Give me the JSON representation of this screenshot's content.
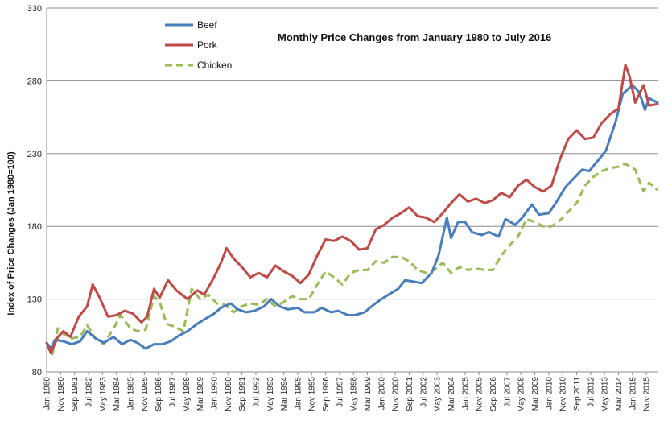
{
  "chart_data": {
    "type": "line",
    "title": "Monthly Price Changes from January 1980  to July 2016",
    "ylabel": "Index of Price Changes (Jan 1980=100)",
    "xlabel": "",
    "ylim": [
      80,
      330
    ],
    "yticks": [
      80,
      130,
      180,
      230,
      280,
      330
    ],
    "x_start": "1980-01",
    "x_end": "2016-07",
    "x_tick_labels": [
      "Jan 1980",
      "Nov 1980",
      "Sep 1981",
      "Jul 1982",
      "May 1983",
      "Mar 1984",
      "Jan 1985",
      "Nov 1985",
      "Sep 1986",
      "Jul 1987",
      "May 1988",
      "Mar 1989",
      "Jan 1990",
      "Nov 1990",
      "Sep 1991",
      "Jul 1992",
      "May 1993",
      "Mar 1994",
      "Jan 1995",
      "Nov 1995",
      "Sep 1996",
      "Jul 1997",
      "May 1998",
      "Mar 1999",
      "Jan 2000",
      "Nov 2000",
      "Sep 2001",
      "Jul 2002",
      "May 2003",
      "Mar 2004",
      "Jan 2005",
      "Nov 2005",
      "Sep 2006",
      "Jul 2007",
      "May 2008",
      "Mar 2009",
      "Jan 2010",
      "Nov 2010",
      "Sep 2011",
      "Jul 2012",
      "May 2013",
      "Mar 2014",
      "Jan 2015",
      "Nov 2015"
    ],
    "grid": true,
    "legend_position": "top-left",
    "series": [
      {
        "name": "Beef",
        "color": "#4a7ebb",
        "dash": "solid",
        "points": [
          [
            "1980-01",
            100
          ],
          [
            "1980-04",
            96
          ],
          [
            "1980-07",
            102
          ],
          [
            "1981-01",
            101
          ],
          [
            "1981-07",
            99
          ],
          [
            "1982-01",
            101
          ],
          [
            "1982-06",
            108
          ],
          [
            "1982-12",
            103
          ],
          [
            "1983-06",
            100
          ],
          [
            "1984-01",
            104
          ],
          [
            "1984-07",
            99
          ],
          [
            "1985-01",
            102
          ],
          [
            "1985-06",
            100
          ],
          [
            "1985-12",
            96
          ],
          [
            "1986-06",
            99
          ],
          [
            "1986-12",
            99
          ],
          [
            "1987-06",
            101
          ],
          [
            "1987-12",
            105
          ],
          [
            "1988-06",
            108
          ],
          [
            "1989-01",
            113
          ],
          [
            "1989-06",
            116
          ],
          [
            "1990-01",
            120
          ],
          [
            "1990-06",
            124
          ],
          [
            "1991-01",
            127
          ],
          [
            "1991-06",
            123
          ],
          [
            "1991-12",
            121
          ],
          [
            "1992-06",
            122
          ],
          [
            "1993-01",
            125
          ],
          [
            "1993-06",
            130
          ],
          [
            "1993-12",
            125
          ],
          [
            "1994-06",
            123
          ],
          [
            "1995-01",
            124
          ],
          [
            "1995-06",
            121
          ],
          [
            "1996-01",
            121
          ],
          [
            "1996-06",
            124
          ],
          [
            "1997-01",
            121
          ],
          [
            "1997-06",
            122
          ],
          [
            "1998-01",
            119
          ],
          [
            "1998-06",
            119
          ],
          [
            "1999-01",
            121
          ],
          [
            "1999-06",
            125
          ],
          [
            "2000-01",
            130
          ],
          [
            "2000-06",
            133
          ],
          [
            "2001-01",
            137
          ],
          [
            "2001-06",
            143
          ],
          [
            "2001-12",
            142
          ],
          [
            "2002-06",
            141
          ],
          [
            "2003-01",
            148
          ],
          [
            "2003-06",
            160
          ],
          [
            "2003-12",
            186
          ],
          [
            "2004-03",
            172
          ],
          [
            "2004-08",
            183
          ],
          [
            "2005-01",
            183
          ],
          [
            "2005-06",
            176
          ],
          [
            "2006-01",
            174
          ],
          [
            "2006-06",
            176
          ],
          [
            "2007-01",
            173
          ],
          [
            "2007-06",
            185
          ],
          [
            "2008-01",
            181
          ],
          [
            "2008-06",
            186
          ],
          [
            "2009-01",
            195
          ],
          [
            "2009-06",
            188
          ],
          [
            "2010-01",
            189
          ],
          [
            "2010-06",
            196
          ],
          [
            "2011-01",
            207
          ],
          [
            "2011-06",
            212
          ],
          [
            "2012-01",
            219
          ],
          [
            "2012-06",
            218
          ],
          [
            "2013-01",
            226
          ],
          [
            "2013-06",
            232
          ],
          [
            "2014-01",
            252
          ],
          [
            "2014-06",
            271
          ],
          [
            "2015-01",
            277
          ],
          [
            "2015-06",
            272
          ],
          [
            "2015-10",
            260
          ],
          [
            "2016-01",
            268
          ],
          [
            "2016-07",
            265
          ]
        ]
      },
      {
        "name": "Pork",
        "color": "#be4b48",
        "dash": "solid",
        "points": [
          [
            "1980-01",
            100
          ],
          [
            "1980-04",
            93
          ],
          [
            "1980-09",
            104
          ],
          [
            "1981-01",
            108
          ],
          [
            "1981-06",
            104
          ],
          [
            "1981-12",
            118
          ],
          [
            "1982-06",
            125
          ],
          [
            "1982-10",
            140
          ],
          [
            "1983-03",
            131
          ],
          [
            "1983-09",
            118
          ],
          [
            "1984-03",
            119
          ],
          [
            "1984-09",
            122
          ],
          [
            "1985-03",
            120
          ],
          [
            "1985-09",
            114
          ],
          [
            "1986-01",
            118
          ],
          [
            "1986-06",
            137
          ],
          [
            "1986-10",
            131
          ],
          [
            "1987-04",
            143
          ],
          [
            "1987-10",
            136
          ],
          [
            "1988-06",
            130
          ],
          [
            "1989-01",
            136
          ],
          [
            "1989-06",
            133
          ],
          [
            "1990-01",
            145
          ],
          [
            "1990-06",
            155
          ],
          [
            "1990-10",
            165
          ],
          [
            "1991-03",
            158
          ],
          [
            "1991-09",
            152
          ],
          [
            "1992-03",
            145
          ],
          [
            "1992-09",
            148
          ],
          [
            "1993-03",
            145
          ],
          [
            "1993-09",
            153
          ],
          [
            "1994-03",
            149
          ],
          [
            "1994-09",
            146
          ],
          [
            "1995-03",
            141
          ],
          [
            "1995-09",
            147
          ],
          [
            "1996-03",
            160
          ],
          [
            "1996-09",
            171
          ],
          [
            "1997-03",
            170
          ],
          [
            "1997-09",
            173
          ],
          [
            "1998-03",
            170
          ],
          [
            "1998-09",
            164
          ],
          [
            "1999-03",
            165
          ],
          [
            "1999-09",
            178
          ],
          [
            "2000-03",
            181
          ],
          [
            "2000-09",
            186
          ],
          [
            "2001-03",
            189
          ],
          [
            "2001-09",
            193
          ],
          [
            "2002-03",
            187
          ],
          [
            "2002-09",
            186
          ],
          [
            "2003-03",
            183
          ],
          [
            "2003-09",
            189
          ],
          [
            "2004-03",
            196
          ],
          [
            "2004-09",
            202
          ],
          [
            "2005-03",
            197
          ],
          [
            "2005-09",
            199
          ],
          [
            "2006-03",
            196
          ],
          [
            "2006-09",
            198
          ],
          [
            "2007-03",
            203
          ],
          [
            "2007-09",
            200
          ],
          [
            "2008-03",
            208
          ],
          [
            "2008-09",
            212
          ],
          [
            "2009-03",
            207
          ],
          [
            "2009-09",
            204
          ],
          [
            "2010-03",
            208
          ],
          [
            "2010-09",
            226
          ],
          [
            "2011-03",
            240
          ],
          [
            "2011-09",
            246
          ],
          [
            "2012-03",
            240
          ],
          [
            "2012-09",
            241
          ],
          [
            "2013-03",
            251
          ],
          [
            "2013-09",
            257
          ],
          [
            "2014-03",
            261
          ],
          [
            "2014-08",
            291
          ],
          [
            "2014-11",
            283
          ],
          [
            "2015-03",
            265
          ],
          [
            "2015-09",
            277
          ],
          [
            "2016-01",
            263
          ],
          [
            "2016-07",
            264
          ]
        ]
      },
      {
        "name": "Chicken",
        "color": "#9bbb59",
        "dash": "dashed",
        "points": [
          [
            "1980-01",
            100
          ],
          [
            "1980-05",
            92
          ],
          [
            "1980-09",
            110
          ],
          [
            "1981-01",
            106
          ],
          [
            "1981-07",
            103
          ],
          [
            "1982-01",
            104
          ],
          [
            "1982-06",
            112
          ],
          [
            "1982-12",
            103
          ],
          [
            "1983-06",
            99
          ],
          [
            "1984-01",
            110
          ],
          [
            "1984-06",
            119
          ],
          [
            "1985-01",
            110
          ],
          [
            "1985-06",
            108
          ],
          [
            "1985-12",
            109
          ],
          [
            "1986-06",
            132
          ],
          [
            "1986-10",
            128
          ],
          [
            "1987-03",
            113
          ],
          [
            "1987-09",
            111
          ],
          [
            "1988-03",
            108
          ],
          [
            "1988-09",
            137
          ],
          [
            "1989-03",
            130
          ],
          [
            "1989-09",
            133
          ],
          [
            "1990-03",
            127
          ],
          [
            "1990-09",
            126
          ],
          [
            "1991-03",
            121
          ],
          [
            "1991-09",
            125
          ],
          [
            "1992-03",
            127
          ],
          [
            "1992-09",
            126
          ],
          [
            "1993-03",
            130
          ],
          [
            "1993-09",
            125
          ],
          [
            "1994-03",
            128
          ],
          [
            "1994-09",
            132
          ],
          [
            "1995-03",
            130
          ],
          [
            "1995-09",
            130
          ],
          [
            "1996-03",
            140
          ],
          [
            "1996-09",
            149
          ],
          [
            "1997-03",
            145
          ],
          [
            "1997-09",
            140
          ],
          [
            "1998-03",
            148
          ],
          [
            "1998-09",
            150
          ],
          [
            "1999-03",
            150
          ],
          [
            "1999-09",
            156
          ],
          [
            "2000-03",
            155
          ],
          [
            "2000-09",
            159
          ],
          [
            "2001-03",
            159
          ],
          [
            "2001-09",
            156
          ],
          [
            "2002-03",
            150
          ],
          [
            "2002-09",
            148
          ],
          [
            "2003-03",
            150
          ],
          [
            "2003-09",
            155
          ],
          [
            "2004-03",
            148
          ],
          [
            "2004-09",
            152
          ],
          [
            "2005-03",
            150
          ],
          [
            "2005-09",
            151
          ],
          [
            "2006-03",
            150
          ],
          [
            "2006-09",
            150
          ],
          [
            "2007-03",
            160
          ],
          [
            "2007-09",
            167
          ],
          [
            "2008-03",
            173
          ],
          [
            "2008-09",
            185
          ],
          [
            "2009-03",
            183
          ],
          [
            "2009-09",
            180
          ],
          [
            "2010-03",
            180
          ],
          [
            "2010-09",
            184
          ],
          [
            "2011-03",
            190
          ],
          [
            "2011-09",
            196
          ],
          [
            "2012-03",
            208
          ],
          [
            "2012-09",
            214
          ],
          [
            "2013-03",
            218
          ],
          [
            "2013-09",
            220
          ],
          [
            "2014-03",
            221
          ],
          [
            "2014-08",
            223
          ],
          [
            "2015-03",
            219
          ],
          [
            "2015-09",
            204
          ],
          [
            "2016-01",
            210
          ],
          [
            "2016-07",
            205
          ]
        ]
      }
    ]
  }
}
